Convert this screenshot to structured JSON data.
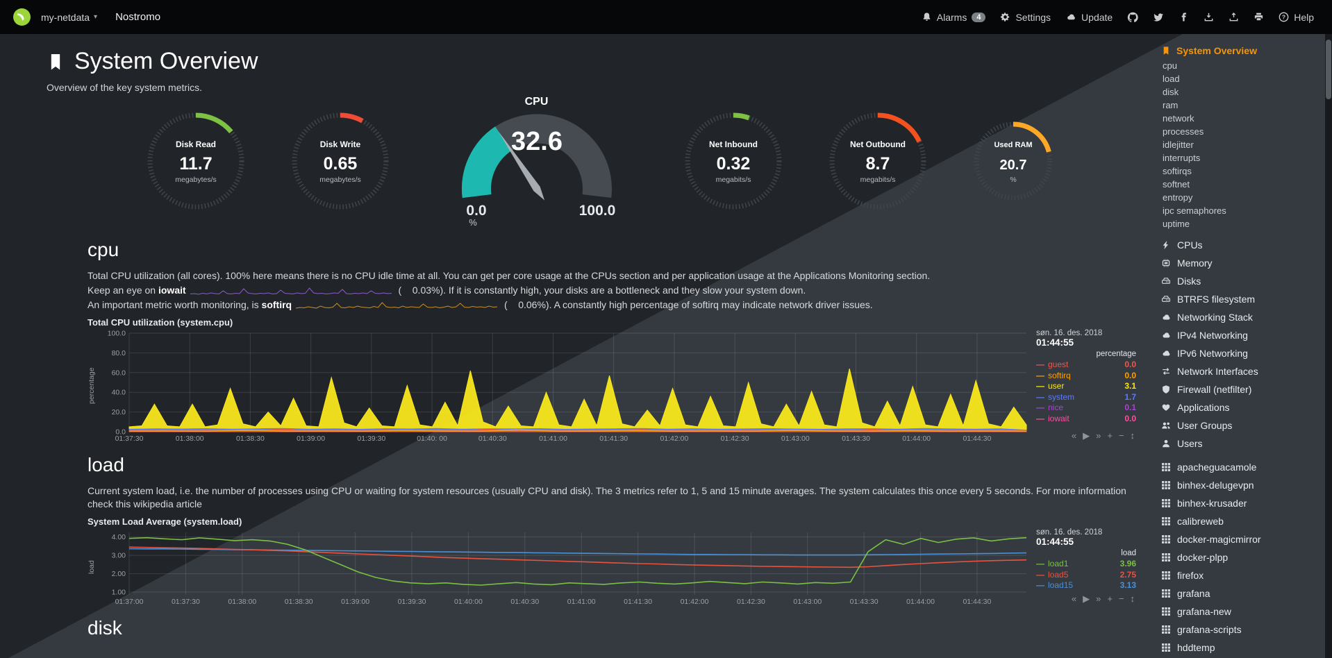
{
  "navbar": {
    "hostname": "my-netdata",
    "caret_glyph": "▾",
    "brand": "Nostromo",
    "alarms_label": "Alarms",
    "alarms_count": "4",
    "settings_label": "Settings",
    "update_label": "Update",
    "help_label": "Help"
  },
  "page": {
    "title": "System Overview",
    "subtitle": "Overview of the key system metrics."
  },
  "gauges": [
    {
      "id": "disk-read",
      "type": "easypie",
      "title": "Disk Read",
      "value": "11.7",
      "units": "megabytes/s",
      "fraction": 0.14,
      "color": "#7dc242",
      "size": 150
    },
    {
      "id": "disk-write",
      "type": "easypie",
      "title": "Disk Write",
      "value": "0.65",
      "units": "megabytes/s",
      "fraction": 0.08,
      "color": "#ef4b36",
      "size": 150
    },
    {
      "id": "cpu",
      "type": "gauge",
      "title": "CPU",
      "value": "32.6",
      "units": "%",
      "min": "0.0",
      "max": "100.0",
      "fraction": 0.326,
      "color": "#1db8af"
    },
    {
      "id": "net-inbound",
      "type": "easypie",
      "title": "Net Inbound",
      "value": "0.32",
      "units": "megabits/s",
      "fraction": 0.055,
      "color": "#7dc242",
      "size": 150
    },
    {
      "id": "net-outbound",
      "type": "easypie",
      "title": "Net Outbound",
      "value": "8.7",
      "units": "megabits/s",
      "fraction": 0.18,
      "color": "#f4511e",
      "size": 150
    },
    {
      "id": "used-ram",
      "type": "easypie",
      "title": "Used RAM",
      "value": "20.7",
      "units": "%",
      "fraction": 0.21,
      "color": "#ffa726",
      "size": 124
    }
  ],
  "sections": {
    "cpu": {
      "heading": "cpu",
      "p1": "Total CPU utilization (all cores). 100% here means there is no CPU idle time at all. You can get per core usage at the CPUs section and per application usage at the Applications Monitoring section.",
      "p2_pre": "Keep an eye on ",
      "p2_bold": "iowait",
      "p2_post": " (    0.03%). If it is constantly high, your disks are a bottleneck and they slow your system down.",
      "p3_pre": "An important metric worth monitoring, is ",
      "p3_bold": "softirq",
      "p3_post": " (    0.06%). A constantly high percentage of softirq may indicate network driver issues."
    },
    "load": {
      "heading": "load",
      "p1": "Current system load, i.e. the number of processes using CPU or waiting for system resources (usually CPU and disk). The 3 metrics refer to 1, 5 and 15 minute averages. The system calculates this once every 5 seconds. For more information check this wikipedia article"
    },
    "disk": {
      "heading": "disk"
    }
  },
  "chart_toolbar": [
    {
      "name": "pan-backward",
      "glyph": "«"
    },
    {
      "name": "play",
      "glyph": "▶"
    },
    {
      "name": "pan-forward",
      "glyph": "»"
    },
    {
      "name": "zoom-in",
      "glyph": "+"
    },
    {
      "name": "zoom-out",
      "glyph": "−"
    },
    {
      "name": "resize",
      "glyph": "↕"
    }
  ],
  "sparks": {
    "iowait_spark": {
      "color": "#8d5ccb",
      "data": [
        0.15,
        0.2,
        0.1,
        0.25,
        0.15,
        0.3,
        0.2,
        0.15,
        0.6,
        0.2,
        0.15,
        0.25,
        0.2,
        0.9,
        0.3,
        0.2,
        0.15,
        0.25,
        0.2,
        0.3,
        0.15,
        0.2,
        0.7,
        0.25,
        0.2,
        0.15,
        0.3,
        0.2,
        0.25,
        1.0,
        0.3,
        0.2,
        0.25,
        0.15,
        0.2,
        0.3,
        0.25,
        0.8,
        0.2,
        0.15,
        0.25,
        0.2,
        0.3,
        0.2,
        0.6,
        0.25,
        0.2,
        0.3,
        0.2,
        0.25
      ]
    },
    "softirq_spark": {
      "color": "#c99026",
      "data": [
        0.2,
        0.3,
        0.25,
        0.4,
        0.3,
        0.2,
        0.5,
        0.3,
        0.25,
        0.35,
        0.9,
        0.3,
        0.25,
        0.4,
        0.3,
        0.5,
        0.35,
        0.3,
        0.25,
        0.45,
        0.3,
        1.0,
        0.4,
        0.3,
        0.35,
        0.25,
        0.5,
        0.3,
        0.4,
        0.35,
        0.3,
        0.8,
        0.35,
        0.3,
        0.4,
        0.25,
        0.35,
        0.5,
        0.3,
        0.4,
        0.9,
        0.35,
        0.3,
        0.45,
        0.35,
        0.4,
        0.3,
        0.5,
        0.35,
        0.4
      ]
    }
  },
  "charts": {
    "cpu": {
      "type": "area",
      "title": "Total CPU utilization (system.cpu)",
      "ylabel": "percentage",
      "ylim": [
        0,
        100
      ],
      "yticks": [
        {
          "v": 100,
          "label": "100.0"
        },
        {
          "v": 80,
          "label": "80.0"
        },
        {
          "v": 60,
          "label": "60.0"
        },
        {
          "v": 40,
          "label": "40.0"
        },
        {
          "v": 20,
          "label": "20.0"
        },
        {
          "v": 0,
          "label": "0.0"
        }
      ],
      "xticks": [
        "01:37:30",
        "01:38:00",
        "01:38:30",
        "01:39:00",
        "01:39:30",
        "01:40: 00",
        "01:40:30",
        "01:41:00",
        "01:41:30",
        "01:42:00",
        "01:42:30",
        "01:43:00",
        "01:43:30",
        "01:44:00",
        "01:44:30"
      ],
      "legend_date": "søn. 16. des. 2018",
      "legend_time": "01:44:55",
      "legend_units": "percentage",
      "draw": [
        "user",
        "system",
        "guest",
        "softirq"
      ],
      "series": [
        {
          "name": "guest",
          "color": "#e85950",
          "value": "0.0",
          "fill": true,
          "data": [
            1,
            1.5,
            1,
            2,
            1,
            1.2,
            3,
            1,
            1.5,
            1,
            2.2,
            1,
            1.4,
            1,
            2.8,
            1,
            1.2,
            1.8,
            1,
            1.5,
            2.4,
            1,
            1.3,
            1,
            2,
            1.5,
            1,
            1.8,
            1,
            2.6,
            1,
            1.4,
            1,
            2,
            1.2,
            1
          ]
        },
        {
          "name": "softirq",
          "color": "#ffa000",
          "value": "0.0",
          "fill": false,
          "data": [
            0.5,
            0.6,
            0.5,
            1.5,
            0.5,
            0.7,
            0.5,
            1.2,
            0.6,
            0.5,
            1.8,
            0.5,
            0.6,
            1.1,
            0.5,
            0.7,
            0.5,
            1.4,
            0.6,
            0.5,
            1.0,
            0.5,
            0.6,
            0.5
          ]
        },
        {
          "name": "user",
          "color": "#f8e71c",
          "value": "3.1",
          "fill": true,
          "data": [
            5,
            6,
            28,
            6,
            5,
            28,
            5,
            7,
            44,
            8,
            5,
            20,
            6,
            34,
            6,
            5,
            55,
            9,
            5,
            24,
            6,
            5,
            47,
            7,
            5,
            30,
            6,
            62,
            10,
            5,
            26,
            6,
            5,
            40,
            7,
            5,
            33,
            6,
            57,
            8,
            5,
            22,
            6,
            44,
            7,
            5,
            36,
            6,
            5,
            50,
            8,
            5,
            28,
            6,
            41,
            7,
            5,
            64,
            9,
            5,
            31,
            6,
            46,
            7,
            5,
            38,
            6,
            52,
            8,
            5,
            25,
            7
          ]
        },
        {
          "name": "system",
          "color": "#5b7bfa",
          "value": "1.7",
          "fill": true,
          "data": [
            2.5,
            3,
            2.8,
            3.2,
            2.6,
            3,
            3.4,
            2.7,
            3,
            2.5,
            3.1,
            2.8,
            3.3,
            2.6,
            3,
            2.9,
            3.2,
            2.5,
            2.8,
            3,
            3.3,
            2.7,
            3.1,
            2.6,
            2.9,
            3.2,
            2.8,
            2.5,
            3,
            3.1,
            2.7,
            3.3,
            2.9,
            2.6,
            3,
            1.7
          ]
        },
        {
          "name": "nice",
          "color": "#a942d0",
          "value": "0.1",
          "fill": false,
          "data": []
        },
        {
          "name": "iowait",
          "color": "#ff4da0",
          "value": "0.0",
          "fill": false,
          "data": []
        }
      ]
    },
    "load": {
      "type": "line",
      "title": "System Load Average (system.load)",
      "ylabel": "load",
      "ylim": [
        0.85,
        4.25
      ],
      "yticks": [
        {
          "v": 4,
          "label": "4.00"
        },
        {
          "v": 3,
          "label": "3.00"
        },
        {
          "v": 2,
          "label": "2.00"
        },
        {
          "v": 1,
          "label": "1.00"
        }
      ],
      "xticks": [
        "01:37:00",
        "01:37:30",
        "01:38:00",
        "01:38:30",
        "01:39:00",
        "01:39:30",
        "01:40:00",
        "01:40:30",
        "01:41:00",
        "01:41:30",
        "01:42:00",
        "01:42:30",
        "01:43:00",
        "01:43:30",
        "01:44:00",
        "01:44:30"
      ],
      "legend_date": "søn. 16. des. 2018",
      "legend_time": "01:44:55",
      "legend_units": "load",
      "draw": [
        "load15",
        "load5",
        "load1"
      ],
      "series": [
        {
          "name": "load1",
          "color": "#7ac143",
          "value": "3.96",
          "fill": false,
          "data": [
            3.92,
            3.96,
            3.9,
            3.85,
            3.95,
            3.88,
            3.8,
            3.85,
            3.78,
            3.6,
            3.3,
            2.9,
            2.5,
            2.1,
            1.8,
            1.6,
            1.5,
            1.45,
            1.5,
            1.42,
            1.38,
            1.45,
            1.52,
            1.44,
            1.4,
            1.5,
            1.46,
            1.42,
            1.5,
            1.55,
            1.48,
            1.44,
            1.5,
            1.58,
            1.52,
            1.46,
            1.55,
            1.5,
            1.44,
            1.52,
            1.48,
            1.55,
            3.2,
            3.85,
            3.6,
            3.92,
            3.7,
            3.88,
            3.95,
            3.78,
            3.9,
            3.96
          ]
        },
        {
          "name": "load5",
          "color": "#e8533f",
          "value": "2.75",
          "fill": false,
          "data": [
            3.45,
            3.43,
            3.41,
            3.4,
            3.38,
            3.35,
            3.32,
            3.3,
            3.27,
            3.24,
            3.2,
            3.16,
            3.12,
            3.08,
            3.04,
            3.0,
            2.96,
            2.92,
            2.88,
            2.85,
            2.82,
            2.79,
            2.76,
            2.73,
            2.7,
            2.67,
            2.64,
            2.61,
            2.58,
            2.55,
            2.53,
            2.5,
            2.48,
            2.46,
            2.44,
            2.42,
            2.4,
            2.39,
            2.38,
            2.37,
            2.36,
            2.35,
            2.38,
            2.44,
            2.5,
            2.55,
            2.6,
            2.64,
            2.68,
            2.71,
            2.73,
            2.75
          ]
        },
        {
          "name": "load15",
          "color": "#4a90d9",
          "value": "3.13",
          "fill": false,
          "data": [
            3.36,
            3.35,
            3.35,
            3.34,
            3.33,
            3.32,
            3.31,
            3.3,
            3.29,
            3.28,
            3.27,
            3.26,
            3.25,
            3.24,
            3.23,
            3.22,
            3.21,
            3.2,
            3.19,
            3.18,
            3.17,
            3.16,
            3.15,
            3.14,
            3.13,
            3.12,
            3.11,
            3.1,
            3.09,
            3.08,
            3.07,
            3.06,
            3.05,
            3.05,
            3.04,
            3.04,
            3.03,
            3.03,
            3.02,
            3.02,
            3.02,
            3.02,
            3.03,
            3.04,
            3.05,
            3.06,
            3.07,
            3.08,
            3.09,
            3.1,
            3.12,
            3.13
          ]
        }
      ]
    }
  },
  "sidebar": {
    "active": {
      "label": "System Overview",
      "icon": "bookmark-icon"
    },
    "sub_items": [
      "cpu",
      "load",
      "disk",
      "ram",
      "network",
      "processes",
      "idlejitter",
      "interrupts",
      "softirqs",
      "softnet",
      "entropy",
      "ipc semaphores",
      "uptime"
    ],
    "sections": [
      {
        "label": "CPUs",
        "icon": "bolt-icon"
      },
      {
        "label": "Memory",
        "icon": "memory-icon"
      },
      {
        "label": "Disks",
        "icon": "disk-icon"
      },
      {
        "label": "BTRFS filesystem",
        "icon": "disk-icon"
      },
      {
        "label": "Networking Stack",
        "icon": "cloud-icon"
      },
      {
        "label": "IPv4 Networking",
        "icon": "cloud-icon"
      },
      {
        "label": "IPv6 Networking",
        "icon": "cloud-icon"
      },
      {
        "label": "Network Interfaces",
        "icon": "exchange-icon"
      },
      {
        "label": "Firewall (netfilter)",
        "icon": "shield-icon"
      },
      {
        "label": "Applications",
        "icon": "heartbeat-icon"
      },
      {
        "label": "User Groups",
        "icon": "users-icon"
      },
      {
        "label": "Users",
        "icon": "user-icon"
      }
    ],
    "apps": [
      {
        "label": "apacheguacamole",
        "icon": "grid-icon"
      },
      {
        "label": "binhex-delugevpn",
        "icon": "grid-icon"
      },
      {
        "label": "binhex-krusader",
        "icon": "grid-icon"
      },
      {
        "label": "calibreweb",
        "icon": "grid-icon"
      },
      {
        "label": "docker-magicmirror",
        "icon": "grid-icon"
      },
      {
        "label": "docker-plpp",
        "icon": "grid-icon"
      },
      {
        "label": "firefox",
        "icon": "grid-icon"
      },
      {
        "label": "grafana",
        "icon": "grid-icon"
      },
      {
        "label": "grafana-new",
        "icon": "grid-icon"
      },
      {
        "label": "grafana-scripts",
        "icon": "grid-icon"
      },
      {
        "label": "hddtemp",
        "icon": "grid-icon"
      }
    ]
  }
}
